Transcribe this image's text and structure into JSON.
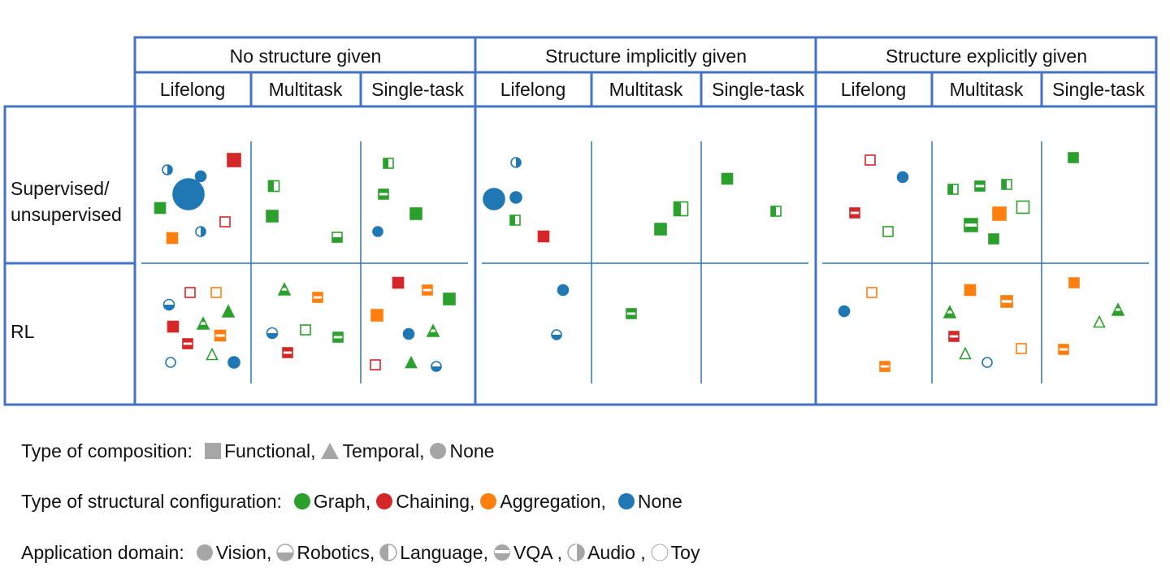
{
  "header": {
    "groups": [
      "No structure given",
      "Structure implicitly given",
      "Structure explicitly given"
    ],
    "subcolumns": [
      "Lifelong",
      "Multitask",
      "Single-task"
    ]
  },
  "rows": {
    "row1_line1": "Supervised/",
    "row1_line2": "unsupervised",
    "row2": "RL"
  },
  "colors": {
    "border": "#4472c4",
    "divider": "#2e75b6",
    "graph": "#2ca02c",
    "chaining": "#d62728",
    "aggregation": "#ff7f0e",
    "none": "#1f77b4",
    "legend_gray": "#a6a6a6"
  },
  "legend": {
    "composition": {
      "label": "Type of composition:",
      "items": [
        {
          "shape": "square",
          "text": "Functional,"
        },
        {
          "shape": "triangle",
          "text": "Temporal,"
        },
        {
          "shape": "circle",
          "text": "None"
        }
      ]
    },
    "configuration": {
      "label": "Type of structural configuration:",
      "items": [
        {
          "color": "graph",
          "text": "Graph,"
        },
        {
          "color": "chaining",
          "text": "Chaining,"
        },
        {
          "color": "aggregation",
          "text": "Aggregation,"
        },
        {
          "color": "none",
          "text": "None"
        }
      ]
    },
    "domain": {
      "label": "Application domain:",
      "items": [
        {
          "fill": "vision",
          "text": "Vision,"
        },
        {
          "fill": "robotics",
          "text": "Robotics,"
        },
        {
          "fill": "language",
          "text": "Language,"
        },
        {
          "fill": "vqa",
          "text": "VQA ,"
        },
        {
          "fill": "audio",
          "text": "Audio ,"
        },
        {
          "fill": "toy",
          "text": "Toy"
        }
      ]
    }
  },
  "chart_data": {
    "type": "scatter",
    "categories_note_free": true,
    "markers": [
      {
        "group": 0,
        "row": 0,
        "sub": 0,
        "shape": "circle",
        "color": "none",
        "fill": "audio",
        "dx": 40,
        "dy": 78,
        "size": 12
      },
      {
        "group": 0,
        "row": 0,
        "sub": 0,
        "shape": "circle",
        "color": "none",
        "fill": "vision",
        "dx": 66,
        "dy": 108,
        "size": 38
      },
      {
        "group": 0,
        "row": 0,
        "sub": 0,
        "shape": "circle",
        "color": "none",
        "fill": "vision",
        "dx": 81,
        "dy": 86,
        "size": 13
      },
      {
        "group": 0,
        "row": 0,
        "sub": 0,
        "shape": "square",
        "color": "chaining",
        "fill": "vision",
        "dx": 122,
        "dy": 66,
        "size": 16
      },
      {
        "group": 0,
        "row": 0,
        "sub": 0,
        "shape": "square",
        "color": "graph",
        "fill": "vision",
        "dx": 31,
        "dy": 125,
        "size": 13
      },
      {
        "group": 0,
        "row": 0,
        "sub": 0,
        "shape": "square",
        "color": "chaining",
        "fill": "toy",
        "dx": 111,
        "dy": 142,
        "size": 12
      },
      {
        "group": 0,
        "row": 0,
        "sub": 0,
        "shape": "circle",
        "color": "none",
        "fill": "audio",
        "dx": 81,
        "dy": 154,
        "size": 12
      },
      {
        "group": 0,
        "row": 0,
        "sub": 0,
        "shape": "square",
        "color": "aggregation",
        "fill": "vision",
        "dx": 46,
        "dy": 162,
        "size": 13
      },
      {
        "group": 0,
        "row": 0,
        "sub": 1,
        "shape": "square",
        "color": "graph",
        "fill": "language",
        "dx": 30,
        "dy": 98,
        "size": 13
      },
      {
        "group": 0,
        "row": 0,
        "sub": 1,
        "shape": "square",
        "color": "graph",
        "fill": "vision",
        "dx": 28,
        "dy": 135,
        "size": 14
      },
      {
        "group": 0,
        "row": 0,
        "sub": 1,
        "shape": "square",
        "color": "graph",
        "fill": "robotics",
        "dx": 108,
        "dy": 161,
        "size": 12
      },
      {
        "group": 0,
        "row": 0,
        "sub": 2,
        "shape": "square",
        "color": "graph",
        "fill": "language",
        "dx": 36,
        "dy": 70,
        "size": 12
      },
      {
        "group": 0,
        "row": 0,
        "sub": 2,
        "shape": "square",
        "color": "graph",
        "fill": "vqa",
        "dx": 30,
        "dy": 108,
        "size": 12
      },
      {
        "group": 0,
        "row": 0,
        "sub": 2,
        "shape": "square",
        "color": "graph",
        "fill": "vision",
        "dx": 70,
        "dy": 132,
        "size": 14
      },
      {
        "group": 0,
        "row": 0,
        "sub": 2,
        "shape": "circle",
        "color": "none",
        "fill": "vision",
        "dx": 23,
        "dy": 154,
        "size": 12
      },
      {
        "group": 0,
        "row": 1,
        "sub": 0,
        "shape": "square",
        "color": "chaining",
        "fill": "toy",
        "dx": 68,
        "dy": 36,
        "size": 12
      },
      {
        "group": 0,
        "row": 1,
        "sub": 0,
        "shape": "square",
        "color": "aggregation",
        "fill": "toy",
        "dx": 100,
        "dy": 36,
        "size": 12
      },
      {
        "group": 0,
        "row": 1,
        "sub": 0,
        "shape": "circle",
        "color": "none",
        "fill": "robotics",
        "dx": 42,
        "dy": 51,
        "size": 13
      },
      {
        "group": 0,
        "row": 1,
        "sub": 0,
        "shape": "triangle",
        "color": "graph",
        "fill": "vision",
        "dx": 115,
        "dy": 59,
        "size": 14
      },
      {
        "group": 0,
        "row": 1,
        "sub": 0,
        "shape": "square",
        "color": "chaining",
        "fill": "vision",
        "dx": 47,
        "dy": 78,
        "size": 13
      },
      {
        "group": 0,
        "row": 1,
        "sub": 0,
        "shape": "triangle",
        "color": "graph",
        "fill": "vqa",
        "dx": 84,
        "dy": 74,
        "size": 14
      },
      {
        "group": 0,
        "row": 1,
        "sub": 0,
        "shape": "square",
        "color": "aggregation",
        "fill": "vqa",
        "dx": 105,
        "dy": 89,
        "size": 13
      },
      {
        "group": 0,
        "row": 1,
        "sub": 0,
        "shape": "square",
        "color": "chaining",
        "fill": "vqa",
        "dx": 65,
        "dy": 99,
        "size": 12
      },
      {
        "group": 0,
        "row": 1,
        "sub": 0,
        "shape": "triangle",
        "color": "graph",
        "fill": "toy",
        "dx": 95,
        "dy": 112,
        "size": 13
      },
      {
        "group": 0,
        "row": 1,
        "sub": 0,
        "shape": "circle",
        "color": "none",
        "fill": "toy",
        "dx": 44,
        "dy": 122,
        "size": 12
      },
      {
        "group": 0,
        "row": 1,
        "sub": 0,
        "shape": "circle",
        "color": "none",
        "fill": "vision",
        "dx": 122,
        "dy": 122,
        "size": 14
      },
      {
        "group": 0,
        "row": 1,
        "sub": 1,
        "shape": "triangle",
        "color": "graph",
        "fill": "vqa",
        "dx": 43,
        "dy": 32,
        "size": 14
      },
      {
        "group": 0,
        "row": 1,
        "sub": 1,
        "shape": "square",
        "color": "aggregation",
        "fill": "vqa",
        "dx": 84,
        "dy": 42,
        "size": 12
      },
      {
        "group": 0,
        "row": 1,
        "sub": 1,
        "shape": "circle",
        "color": "none",
        "fill": "robotics",
        "dx": 28,
        "dy": 86,
        "size": 13
      },
      {
        "group": 0,
        "row": 1,
        "sub": 1,
        "shape": "square",
        "color": "graph",
        "fill": "toy",
        "dx": 69,
        "dy": 82,
        "size": 12
      },
      {
        "group": 0,
        "row": 1,
        "sub": 1,
        "shape": "square",
        "color": "graph",
        "fill": "vqa",
        "dx": 109,
        "dy": 91,
        "size": 12
      },
      {
        "group": 0,
        "row": 1,
        "sub": 1,
        "shape": "square",
        "color": "chaining",
        "fill": "vqa",
        "dx": 47,
        "dy": 110,
        "size": 12
      },
      {
        "group": 0,
        "row": 1,
        "sub": 2,
        "shape": "square",
        "color": "chaining",
        "fill": "vision",
        "dx": 48,
        "dy": 24,
        "size": 13
      },
      {
        "group": 0,
        "row": 1,
        "sub": 2,
        "shape": "square",
        "color": "aggregation",
        "fill": "vqa",
        "dx": 84,
        "dy": 33,
        "size": 12
      },
      {
        "group": 0,
        "row": 1,
        "sub": 2,
        "shape": "square",
        "color": "graph",
        "fill": "vision",
        "dx": 111,
        "dy": 44,
        "size": 14
      },
      {
        "group": 0,
        "row": 1,
        "sub": 2,
        "shape": "square",
        "color": "aggregation",
        "fill": "vision",
        "dx": 22,
        "dy": 64,
        "size": 14
      },
      {
        "group": 0,
        "row": 1,
        "sub": 2,
        "shape": "circle",
        "color": "none",
        "fill": "vision",
        "dx": 61,
        "dy": 87,
        "size": 13
      },
      {
        "group": 0,
        "row": 1,
        "sub": 2,
        "shape": "triangle",
        "color": "graph",
        "fill": "vqa",
        "dx": 91,
        "dy": 83,
        "size": 14
      },
      {
        "group": 0,
        "row": 1,
        "sub": 2,
        "shape": "square",
        "color": "chaining",
        "fill": "toy",
        "dx": 20,
        "dy": 125,
        "size": 12
      },
      {
        "group": 0,
        "row": 1,
        "sub": 2,
        "shape": "triangle",
        "color": "graph",
        "fill": "vision",
        "dx": 64,
        "dy": 122,
        "size": 13
      },
      {
        "group": 0,
        "row": 1,
        "sub": 2,
        "shape": "circle",
        "color": "none",
        "fill": "robotics",
        "dx": 95,
        "dy": 127,
        "size": 12
      },
      {
        "group": 1,
        "row": 0,
        "sub": 0,
        "shape": "circle",
        "color": "none",
        "fill": "audio",
        "dx": 50,
        "dy": 69,
        "size": 12
      },
      {
        "group": 1,
        "row": 0,
        "sub": 0,
        "shape": "circle",
        "color": "none",
        "fill": "vision",
        "dx": 23,
        "dy": 114,
        "size": 26
      },
      {
        "group": 1,
        "row": 0,
        "sub": 0,
        "shape": "circle",
        "color": "none",
        "fill": "vision",
        "dx": 50,
        "dy": 112,
        "size": 14
      },
      {
        "group": 1,
        "row": 0,
        "sub": 0,
        "shape": "square",
        "color": "graph",
        "fill": "language",
        "dx": 49,
        "dy": 140,
        "size": 12
      },
      {
        "group": 1,
        "row": 0,
        "sub": 0,
        "shape": "square",
        "color": "chaining",
        "fill": "vision",
        "dx": 84,
        "dy": 160,
        "size": 13
      },
      {
        "group": 1,
        "row": 0,
        "sub": 1,
        "shape": "square",
        "color": "graph",
        "fill": "language",
        "dx": 112,
        "dy": 126,
        "size": 17
      },
      {
        "group": 1,
        "row": 0,
        "sub": 1,
        "shape": "square",
        "color": "graph",
        "fill": "vision",
        "dx": 87,
        "dy": 151,
        "size": 14
      },
      {
        "group": 1,
        "row": 0,
        "sub": 2,
        "shape": "square",
        "color": "graph",
        "fill": "vision",
        "dx": 34,
        "dy": 89,
        "size": 13
      },
      {
        "group": 1,
        "row": 0,
        "sub": 2,
        "shape": "square",
        "color": "graph",
        "fill": "language",
        "dx": 94,
        "dy": 129,
        "size": 12
      },
      {
        "group": 1,
        "row": 1,
        "sub": 0,
        "shape": "circle",
        "color": "none",
        "fill": "vision",
        "dx": 108,
        "dy": 33,
        "size": 13
      },
      {
        "group": 1,
        "row": 1,
        "sub": 0,
        "shape": "circle",
        "color": "none",
        "fill": "robotics",
        "dx": 100,
        "dy": 88,
        "size": 12
      },
      {
        "group": 1,
        "row": 1,
        "sub": 1,
        "shape": "square",
        "color": "graph",
        "fill": "vqa",
        "dx": 51,
        "dy": 62,
        "size": 12
      },
      {
        "group": 1,
        "row": 0,
        "sub": 0,
        "shape": "square",
        "color": "chaining",
        "fill": "toy",
        "dx": 0,
        "dy": 0,
        "size": 0,
        "skip": true
      },
      {
        "group": 2,
        "row": 0,
        "sub": 0,
        "shape": "square",
        "color": "chaining",
        "fill": "toy",
        "dx": 67,
        "dy": 66,
        "size": 12
      },
      {
        "group": 2,
        "row": 0,
        "sub": 0,
        "shape": "circle",
        "color": "none",
        "fill": "vision",
        "dx": 107,
        "dy": 87,
        "size": 13
      },
      {
        "group": 2,
        "row": 0,
        "sub": 0,
        "shape": "square",
        "color": "chaining",
        "fill": "vqa",
        "dx": 48,
        "dy": 131,
        "size": 12
      },
      {
        "group": 2,
        "row": 0,
        "sub": 0,
        "shape": "square",
        "color": "graph",
        "fill": "toy",
        "dx": 89,
        "dy": 154,
        "size": 12
      },
      {
        "group": 2,
        "row": 0,
        "sub": 1,
        "shape": "square",
        "color": "graph",
        "fill": "language",
        "dx": 28,
        "dy": 102,
        "size": 12
      },
      {
        "group": 2,
        "row": 0,
        "sub": 1,
        "shape": "square",
        "color": "graph",
        "fill": "vqa",
        "dx": 61,
        "dy": 98,
        "size": 12
      },
      {
        "group": 2,
        "row": 0,
        "sub": 1,
        "shape": "square",
        "color": "graph",
        "fill": "language",
        "dx": 94,
        "dy": 96,
        "size": 12
      },
      {
        "group": 2,
        "row": 0,
        "sub": 1,
        "shape": "square",
        "color": "aggregation",
        "fill": "vision",
        "dx": 85,
        "dy": 132,
        "size": 16
      },
      {
        "group": 2,
        "row": 0,
        "sub": 1,
        "shape": "square",
        "color": "graph",
        "fill": "toy",
        "dx": 114,
        "dy": 124,
        "size": 15
      },
      {
        "group": 2,
        "row": 0,
        "sub": 1,
        "shape": "square",
        "color": "graph",
        "fill": "vqa",
        "dx": 50,
        "dy": 146,
        "size": 16
      },
      {
        "group": 2,
        "row": 0,
        "sub": 1,
        "shape": "square",
        "color": "graph",
        "fill": "vision",
        "dx": 78,
        "dy": 163,
        "size": 12
      },
      {
        "group": 2,
        "row": 0,
        "sub": 2,
        "shape": "square",
        "color": "graph",
        "fill": "vision",
        "dx": 41,
        "dy": 63,
        "size": 12
      },
      {
        "group": 2,
        "row": 1,
        "sub": 0,
        "shape": "square",
        "color": "aggregation",
        "fill": "toy",
        "dx": 69,
        "dy": 36,
        "size": 12
      },
      {
        "group": 2,
        "row": 1,
        "sub": 0,
        "shape": "circle",
        "color": "none",
        "fill": "vision",
        "dx": 35,
        "dy": 59,
        "size": 13
      },
      {
        "group": 2,
        "row": 1,
        "sub": 0,
        "shape": "square",
        "color": "aggregation",
        "fill": "vqa",
        "dx": 85,
        "dy": 127,
        "size": 12
      },
      {
        "group": 2,
        "row": 1,
        "sub": 1,
        "shape": "square",
        "color": "aggregation",
        "fill": "vision",
        "dx": 49,
        "dy": 33,
        "size": 13
      },
      {
        "group": 2,
        "row": 1,
        "sub": 1,
        "shape": "square",
        "color": "aggregation",
        "fill": "vqa",
        "dx": 94,
        "dy": 47,
        "size": 14
      },
      {
        "group": 2,
        "row": 1,
        "sub": 1,
        "shape": "triangle",
        "color": "graph",
        "fill": "vqa",
        "dx": 24,
        "dy": 60,
        "size": 14
      },
      {
        "group": 2,
        "row": 1,
        "sub": 1,
        "shape": "square",
        "color": "chaining",
        "fill": "vqa",
        "dx": 29,
        "dy": 90,
        "size": 12
      },
      {
        "group": 2,
        "row": 1,
        "sub": 1,
        "shape": "triangle",
        "color": "graph",
        "fill": "toy",
        "dx": 43,
        "dy": 111,
        "size": 13
      },
      {
        "group": 2,
        "row": 1,
        "sub": 1,
        "shape": "circle",
        "color": "none",
        "fill": "toy",
        "dx": 70,
        "dy": 122,
        "size": 12
      },
      {
        "group": 2,
        "row": 1,
        "sub": 1,
        "shape": "square",
        "color": "aggregation",
        "fill": "toy",
        "dx": 112,
        "dy": 105,
        "size": 12
      },
      {
        "group": 2,
        "row": 1,
        "sub": 2,
        "shape": "square",
        "color": "aggregation",
        "fill": "vision",
        "dx": 42,
        "dy": 24,
        "size": 12
      },
      {
        "group": 2,
        "row": 1,
        "sub": 2,
        "shape": "triangle",
        "color": "graph",
        "fill": "vqa",
        "dx": 96,
        "dy": 57,
        "size": 14
      },
      {
        "group": 2,
        "row": 1,
        "sub": 2,
        "shape": "triangle",
        "color": "graph",
        "fill": "toy",
        "dx": 73,
        "dy": 72,
        "size": 13
      },
      {
        "group": 2,
        "row": 1,
        "sub": 2,
        "shape": "square",
        "color": "aggregation",
        "fill": "vqa",
        "dx": 29,
        "dy": 106,
        "size": 12
      }
    ]
  }
}
